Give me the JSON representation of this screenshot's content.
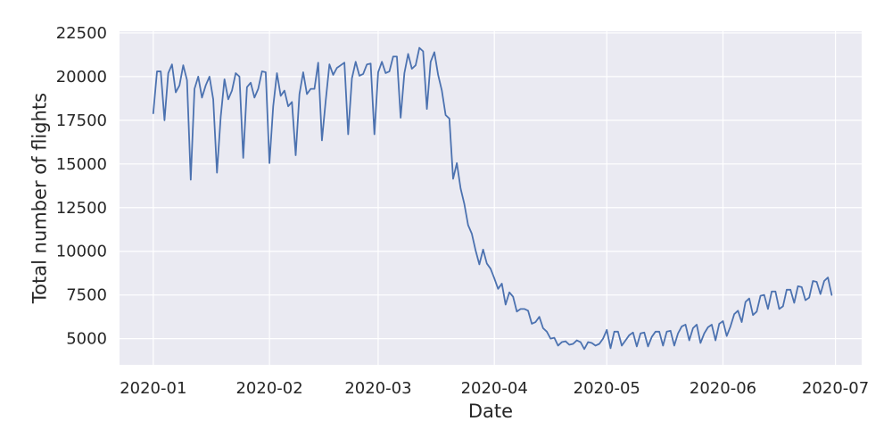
{
  "chart_data": {
    "type": "line",
    "xlabel": "Date",
    "ylabel": "Total number of flights",
    "x_tick_labels": [
      "2020-01",
      "2020-02",
      "2020-03",
      "2020-04",
      "2020-05",
      "2020-06",
      "2020-07"
    ],
    "x_tick_dates": [
      "2020-01-01",
      "2020-02-01",
      "2020-03-01",
      "2020-04-01",
      "2020-05-01",
      "2020-06-01",
      "2020-07-01"
    ],
    "y_ticks": [
      5000,
      7500,
      10000,
      12500,
      15000,
      17500,
      20000,
      22500
    ],
    "xlim": [
      "2019-12-23",
      "2020-07-08"
    ],
    "ylim": [
      3500,
      22600
    ],
    "grid": true,
    "background_color": "#EAEAF2",
    "grid_color": "#FFFFFF",
    "line_color": "#4C72B0",
    "series": [
      {
        "x": [
          "2020-01-01",
          "2020-01-02",
          "2020-01-03",
          "2020-01-04",
          "2020-01-05",
          "2020-01-06",
          "2020-01-07",
          "2020-01-08",
          "2020-01-09",
          "2020-01-10",
          "2020-01-11",
          "2020-01-12",
          "2020-01-13",
          "2020-01-14",
          "2020-01-15",
          "2020-01-16",
          "2020-01-17",
          "2020-01-18",
          "2020-01-19",
          "2020-01-20",
          "2020-01-21",
          "2020-01-22",
          "2020-01-23",
          "2020-01-24",
          "2020-01-25",
          "2020-01-26",
          "2020-01-27",
          "2020-01-28",
          "2020-01-29",
          "2020-01-30",
          "2020-01-31",
          "2020-02-01",
          "2020-02-02",
          "2020-02-03",
          "2020-02-04",
          "2020-02-05",
          "2020-02-06",
          "2020-02-07",
          "2020-02-08",
          "2020-02-09",
          "2020-02-10",
          "2020-02-11",
          "2020-02-12",
          "2020-02-13",
          "2020-02-14",
          "2020-02-15",
          "2020-02-16",
          "2020-02-17",
          "2020-02-18",
          "2020-02-19",
          "2020-02-20",
          "2020-02-21",
          "2020-02-22",
          "2020-02-23",
          "2020-02-24",
          "2020-02-25",
          "2020-02-26",
          "2020-02-27",
          "2020-02-28",
          "2020-02-29",
          "2020-03-01",
          "2020-03-02",
          "2020-03-03",
          "2020-03-04",
          "2020-03-05",
          "2020-03-06",
          "2020-03-07",
          "2020-03-08",
          "2020-03-09",
          "2020-03-10",
          "2020-03-11",
          "2020-03-12",
          "2020-03-13",
          "2020-03-14",
          "2020-03-15",
          "2020-03-16",
          "2020-03-17",
          "2020-03-18",
          "2020-03-19",
          "2020-03-20",
          "2020-03-21",
          "2020-03-22",
          "2020-03-23",
          "2020-03-24",
          "2020-03-25",
          "2020-03-26",
          "2020-03-27",
          "2020-03-28",
          "2020-03-29",
          "2020-03-30",
          "2020-03-31",
          "2020-04-01",
          "2020-04-02",
          "2020-04-03",
          "2020-04-04",
          "2020-04-05",
          "2020-04-06",
          "2020-04-07",
          "2020-04-08",
          "2020-04-09",
          "2020-04-10",
          "2020-04-11",
          "2020-04-12",
          "2020-04-13",
          "2020-04-14",
          "2020-04-15",
          "2020-04-16",
          "2020-04-17",
          "2020-04-18",
          "2020-04-19",
          "2020-04-20",
          "2020-04-21",
          "2020-04-22",
          "2020-04-23",
          "2020-04-24",
          "2020-04-25",
          "2020-04-26",
          "2020-04-27",
          "2020-04-28",
          "2020-04-29",
          "2020-04-30",
          "2020-05-01",
          "2020-05-02",
          "2020-05-03",
          "2020-05-04",
          "2020-05-05",
          "2020-05-06",
          "2020-05-07",
          "2020-05-08",
          "2020-05-09",
          "2020-05-10",
          "2020-05-11",
          "2020-05-12",
          "2020-05-13",
          "2020-05-14",
          "2020-05-15",
          "2020-05-16",
          "2020-05-17",
          "2020-05-18",
          "2020-05-19",
          "2020-05-20",
          "2020-05-21",
          "2020-05-22",
          "2020-05-23",
          "2020-05-24",
          "2020-05-25",
          "2020-05-26",
          "2020-05-27",
          "2020-05-28",
          "2020-05-29",
          "2020-05-30",
          "2020-05-31",
          "2020-06-01",
          "2020-06-02",
          "2020-06-03",
          "2020-06-04",
          "2020-06-05",
          "2020-06-06",
          "2020-06-07",
          "2020-06-08",
          "2020-06-09",
          "2020-06-10",
          "2020-06-11",
          "2020-06-12",
          "2020-06-13",
          "2020-06-14",
          "2020-06-15",
          "2020-06-16",
          "2020-06-17",
          "2020-06-18",
          "2020-06-19",
          "2020-06-20",
          "2020-06-21",
          "2020-06-22",
          "2020-06-23",
          "2020-06-24",
          "2020-06-25",
          "2020-06-26",
          "2020-06-27",
          "2020-06-28",
          "2020-06-29",
          "2020-06-30"
        ],
        "values": [
          17900,
          20300,
          20300,
          17500,
          20200,
          20700,
          19100,
          19500,
          20650,
          19800,
          14100,
          19300,
          20000,
          18800,
          19500,
          20000,
          18700,
          14500,
          17700,
          19850,
          18700,
          19200,
          20200,
          20000,
          15350,
          19400,
          19650,
          18800,
          19300,
          20300,
          20250,
          15050,
          18300,
          20200,
          18900,
          19200,
          18300,
          18550,
          15500,
          19000,
          20250,
          19000,
          19300,
          19300,
          20800,
          16350,
          18600,
          20700,
          20100,
          20500,
          20650,
          20800,
          16700,
          19900,
          20850,
          20050,
          20150,
          20700,
          20750,
          16700,
          20250,
          20850,
          20200,
          20300,
          21150,
          21150,
          17650,
          20200,
          21300,
          20450,
          20650,
          21650,
          21450,
          18150,
          20850,
          21400,
          20100,
          19200,
          17800,
          17600,
          14150,
          15050,
          13600,
          12700,
          11500,
          11000,
          10050,
          9250,
          10100,
          9300,
          9000,
          8450,
          7850,
          8150,
          6950,
          7650,
          7400,
          6550,
          6700,
          6700,
          6600,
          5850,
          5950,
          6250,
          5600,
          5400,
          5000,
          5050,
          4600,
          4800,
          4850,
          4650,
          4700,
          4900,
          4800,
          4400,
          4800,
          4750,
          4600,
          4700,
          5000,
          5500,
          4450,
          5400,
          5400,
          4600,
          4900,
          5200,
          5350,
          4550,
          5300,
          5350,
          4550,
          5100,
          5400,
          5400,
          4600,
          5400,
          5450,
          4600,
          5300,
          5700,
          5800,
          4900,
          5600,
          5800,
          4750,
          5300,
          5650,
          5800,
          4900,
          5850,
          6000,
          5150,
          5700,
          6400,
          6600,
          5950,
          7100,
          7300,
          6350,
          6550,
          7450,
          7500,
          6700,
          7700,
          7700,
          6700,
          6850,
          7800,
          7800,
          7050,
          8000,
          7950,
          7200,
          7350,
          8300,
          8250,
          7550,
          8300,
          8500,
          7500
        ]
      }
    ]
  }
}
